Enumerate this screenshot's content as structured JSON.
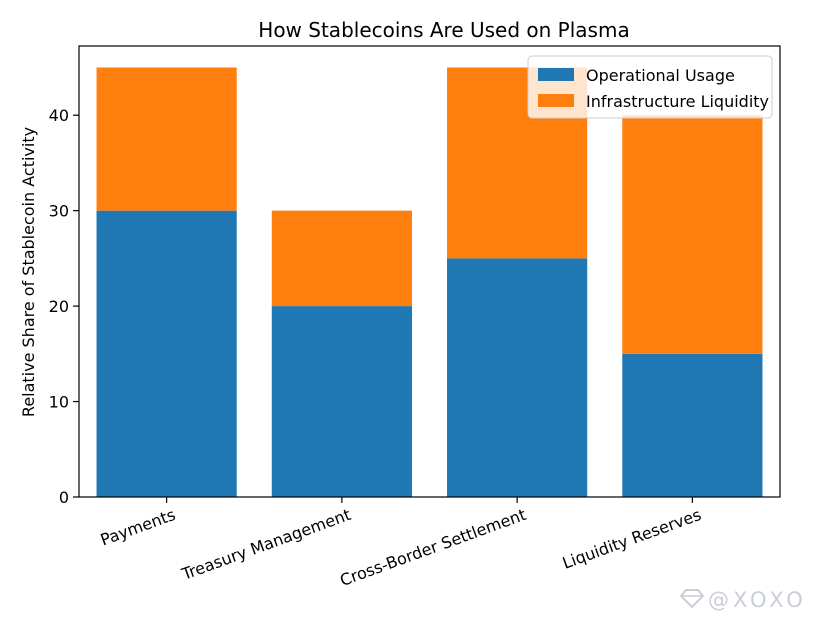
{
  "chart_data": {
    "type": "bar",
    "stacked": true,
    "title": "How Stablecoins Are Used on Plasma",
    "xlabel": "",
    "ylabel": "Relative Share of Stablecoin Activity",
    "categories": [
      "Payments",
      "Treasury Management",
      "Cross-Border Settlement",
      "Liquidity Reserves"
    ],
    "series": [
      {
        "name": "Operational Usage",
        "values": [
          30,
          20,
          25,
          15
        ],
        "color": "#1f77b4"
      },
      {
        "name": "Infrastructure Liquidity",
        "values": [
          15,
          10,
          20,
          25
        ],
        "color": "#ff7f0e"
      }
    ],
    "ylim": [
      0,
      47.25
    ],
    "yticks": [
      0,
      10,
      20,
      30,
      40
    ],
    "grid": false,
    "legend_position": "top-right"
  },
  "watermark": {
    "text": "@XOXO",
    "icon": "diamond-logo-icon"
  }
}
